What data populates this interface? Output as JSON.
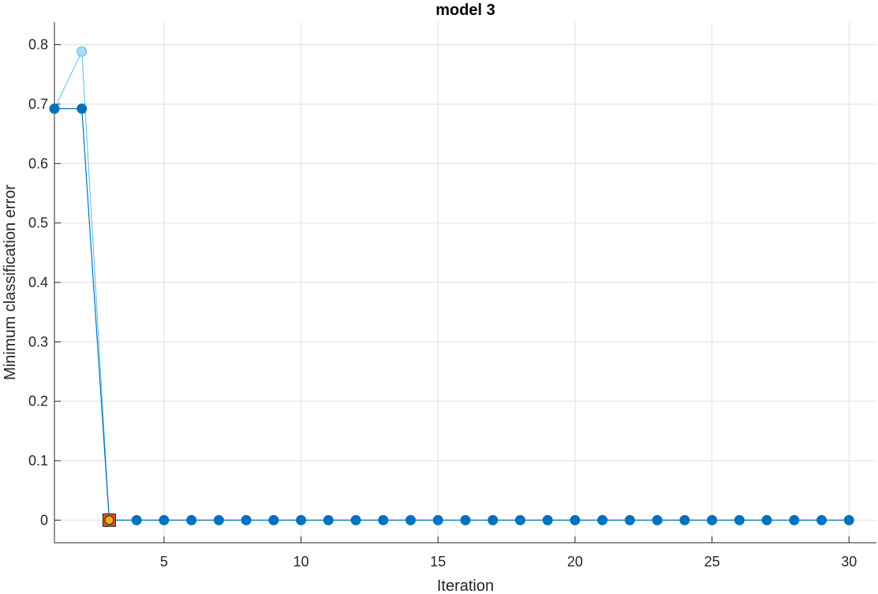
{
  "chart_data": {
    "type": "line",
    "title": "model 3",
    "xlabel": "Iteration",
    "ylabel": "Minimum classification error",
    "xlim": [
      1,
      31
    ],
    "ylim": [
      -0.038,
      0.838
    ],
    "xticks": [
      5,
      10,
      15,
      20,
      25,
      30
    ],
    "yticks": [
      0,
      0.1,
      0.2,
      0.3,
      0.4,
      0.5,
      0.6,
      0.7,
      0.8
    ],
    "grid": true,
    "series": [
      {
        "style": "observed",
        "color": "#0072bd",
        "x": [
          1,
          2,
          3,
          4,
          5,
          6,
          7,
          8,
          9,
          10,
          11,
          12,
          13,
          14,
          15,
          16,
          17,
          18,
          19,
          20,
          21,
          22,
          23,
          24,
          25,
          26,
          27,
          28,
          29,
          30
        ],
        "values": [
          0.6923,
          0.6923,
          0,
          0,
          0,
          0,
          0,
          0,
          0,
          0,
          0,
          0,
          0,
          0,
          0,
          0,
          0,
          0,
          0,
          0,
          0,
          0,
          0,
          0,
          0,
          0,
          0,
          0,
          0,
          0
        ]
      },
      {
        "style": "estimated",
        "color": "#4dbeee",
        "marker_fill": "#a8dcf5",
        "x": [
          1,
          2,
          3,
          4,
          5,
          6,
          7,
          8,
          9,
          10,
          11,
          12,
          13,
          14,
          15,
          16,
          17,
          18,
          19,
          20,
          21,
          22,
          23,
          24,
          25,
          26,
          27,
          28,
          29,
          30
        ],
        "values": [
          0.6923,
          0.7885,
          0,
          0,
          0,
          0,
          0,
          0,
          0,
          0,
          0,
          0,
          0,
          0,
          0,
          0,
          0,
          0,
          0,
          0,
          0,
          0,
          0,
          0,
          0,
          0,
          0,
          0,
          0,
          0
        ]
      }
    ],
    "best_point": {
      "x": 3,
      "value": 0,
      "square_fill": "#d95319",
      "circle_fill": "#edb120"
    }
  }
}
